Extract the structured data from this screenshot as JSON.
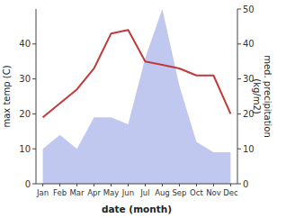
{
  "chart_data": {
    "type": "line",
    "xlabel": "date (month)",
    "ylabel": "max temp (C)",
    "y2label": "med. precipitation\n(kg/m2)",
    "categories": [
      "Jan",
      "Feb",
      "Mar",
      "Apr",
      "May",
      "Jun",
      "Jul",
      "Aug",
      "Sep",
      "Oct",
      "Nov",
      "Dec"
    ],
    "series": [
      {
        "type": "area",
        "color": "#c0c8f0",
        "axis": "y2",
        "values": [
          10,
          14,
          10,
          19,
          19,
          17,
          36,
          50,
          28,
          12,
          9,
          9
        ]
      },
      {
        "type": "line",
        "color": "#c0393b",
        "values": [
          19,
          23,
          27,
          33,
          43,
          44,
          35,
          34,
          33,
          31,
          31,
          20
        ]
      }
    ],
    "ylim": [
      0,
      50
    ],
    "yticks": [
      0,
      10,
      20,
      30,
      40
    ],
    "y2lim": [
      0,
      50
    ],
    "y2ticks": [
      0,
      10,
      20,
      30,
      40,
      50
    ],
    "grid": false
  }
}
